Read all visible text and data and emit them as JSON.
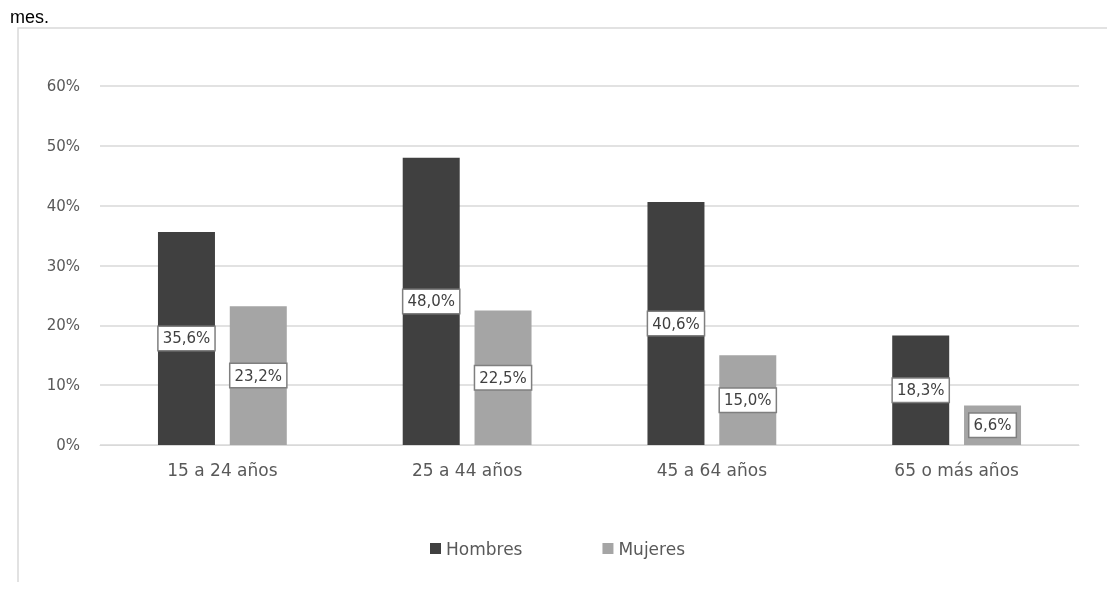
{
  "chart_data": {
    "type": "bar",
    "categories": [
      "15 a 24 años",
      "25 a 44 años",
      "45 a 64 años",
      "65 o más años"
    ],
    "series": [
      {
        "name": "Hombres",
        "color": "#404040",
        "values": [
          35.6,
          48.0,
          40.6,
          18.3
        ],
        "value_labels": [
          "35,6%",
          "48,0%",
          "40,6%",
          "18,3%"
        ]
      },
      {
        "name": "Mujeres",
        "color": "#a5a5a5",
        "values": [
          23.2,
          22.5,
          15.0,
          6.6
        ],
        "value_labels": [
          "23,2%",
          "22,5%",
          "15,0%",
          "6,6%"
        ]
      }
    ],
    "ylim": [
      0,
      60
    ],
    "yticks": [
      {
        "value": 0,
        "label": "0%"
      },
      {
        "value": 10,
        "label": "10%"
      },
      {
        "value": 20,
        "label": "20%"
      },
      {
        "value": 30,
        "label": "30%"
      },
      {
        "value": 40,
        "label": "40%"
      },
      {
        "value": 50,
        "label": "50%"
      },
      {
        "value": 60,
        "label": "60%"
      }
    ],
    "grid": "y",
    "legend": "bottom",
    "annotations": [
      "mes."
    ]
  }
}
